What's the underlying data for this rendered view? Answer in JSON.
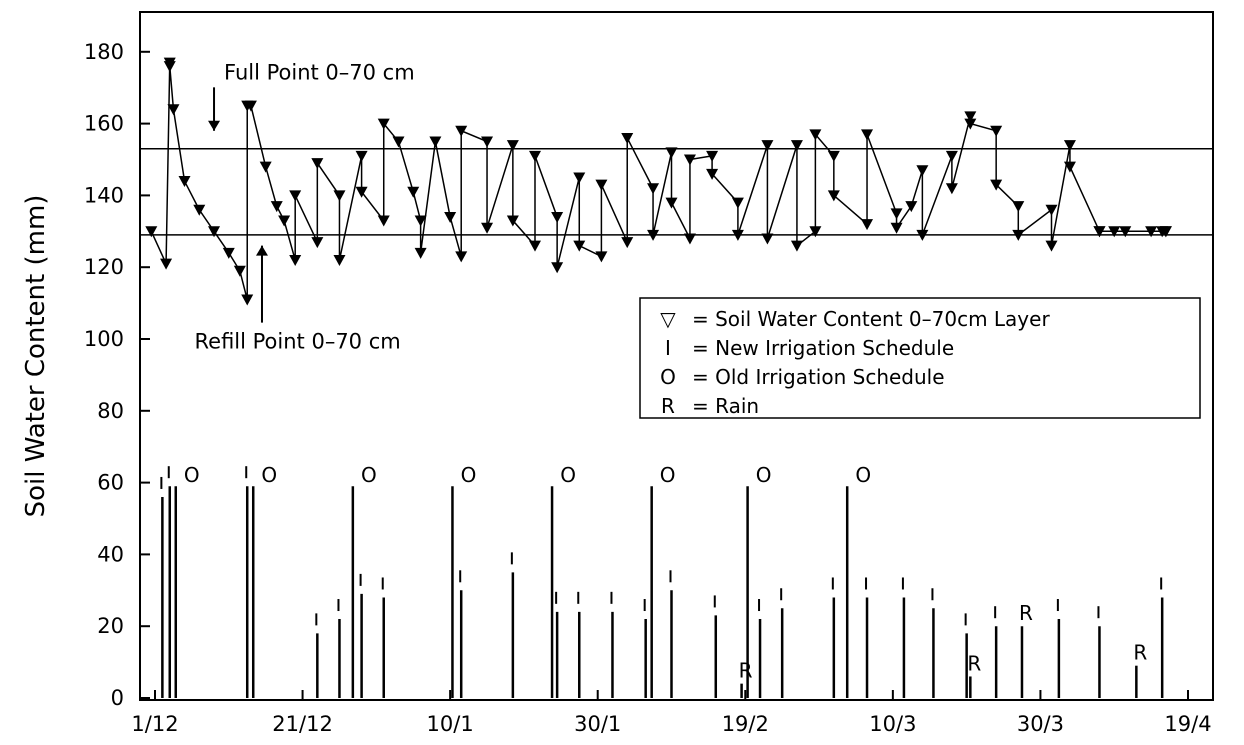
{
  "chart_data": {
    "type": "line",
    "ylabel": "Soil Water Content (mm)",
    "xlabel": "",
    "ylim": [
      0,
      190
    ],
    "yticks": [
      0,
      20,
      40,
      60,
      80,
      100,
      120,
      140,
      160,
      180
    ],
    "x_range_days": [
      0,
      140
    ],
    "xtick_labels": [
      {
        "day": 0,
        "label": "1/12"
      },
      {
        "day": 20,
        "label": "21/12"
      },
      {
        "day": 40,
        "label": "10/1"
      },
      {
        "day": 60,
        "label": "30/1"
      },
      {
        "day": 80,
        "label": "19/2"
      },
      {
        "day": 100,
        "label": "10/3"
      },
      {
        "day": 120,
        "label": "30/3"
      },
      {
        "day": 140,
        "label": "19/4"
      }
    ],
    "reference_lines": [
      {
        "name": "Full Point 0-70 cm",
        "value": 153
      },
      {
        "name": "Refill Point 0-70 cm",
        "value": 129
      }
    ],
    "annotations": [
      {
        "text": "Full Point 0–70 cm",
        "day": 8,
        "y": 174,
        "target_day": 8,
        "target_y": 158
      },
      {
        "text": "Refill Point 0–70 cm",
        "day": 4,
        "y": 99,
        "target_day": 14.5,
        "target_y": 126
      }
    ],
    "series": [
      {
        "name": "Soil Water Content 0–70cm Layer",
        "x": [
          -0.5,
          1.5,
          2,
          2,
          2.5,
          4,
          6,
          8,
          10,
          11.5,
          12.5,
          12.5,
          13,
          15,
          16.5,
          17.5,
          19,
          19,
          22,
          22,
          25,
          25,
          28,
          28,
          31,
          31,
          33,
          35,
          36,
          36,
          38,
          40,
          41.5,
          41.5,
          45,
          45,
          48.5,
          48.5,
          51.5,
          51.5,
          54.5,
          54.5,
          57.5,
          57.5,
          60.5,
          60.5,
          64,
          64,
          67.5,
          67.5,
          70,
          70,
          72.5,
          72.5,
          75.5,
          75.5,
          79,
          79,
          83,
          83,
          87,
          87,
          89.5,
          89.5,
          92,
          92,
          96.5,
          96.5,
          100.5,
          100.5,
          102.5,
          104,
          104,
          108,
          108,
          110.5,
          110.5,
          114,
          114,
          117,
          117,
          121.5,
          121.5,
          124,
          124,
          128,
          128,
          130,
          131.5,
          135,
          136.5,
          137,
          137
        ],
        "y": [
          130,
          121,
          177,
          176,
          164,
          144,
          136,
          130,
          124,
          119,
          111,
          165,
          165,
          148,
          137,
          133,
          122,
          140,
          127,
          149,
          140,
          122,
          151,
          141,
          133,
          160,
          155,
          141,
          133,
          124,
          155,
          134,
          123,
          158,
          155,
          131,
          154,
          133,
          126,
          151,
          134,
          120,
          145,
          126,
          123,
          143,
          127,
          156,
          142,
          129,
          152,
          138,
          128,
          150,
          151,
          146,
          138,
          129,
          154,
          128,
          154,
          126,
          130,
          157,
          151,
          140,
          132,
          157,
          135,
          131,
          137,
          147,
          129,
          151,
          142,
          162,
          160,
          158,
          143,
          137,
          129,
          136,
          126,
          154,
          148,
          130,
          130,
          130,
          130,
          130,
          130,
          130,
          130
        ]
      }
    ],
    "bars_new_irrigation": {
      "name": "New Irrigation Schedule",
      "day": [
        1,
        2,
        12.5,
        22,
        25,
        28,
        31,
        41.5,
        48.5,
        54.5,
        57.5,
        62,
        66.5,
        70,
        76,
        82,
        85,
        92,
        96.5,
        101.5,
        105.5,
        110,
        114,
        122.5,
        128,
        136.5
      ],
      "value": [
        56,
        59,
        59,
        18,
        22,
        29,
        28,
        30,
        35,
        24,
        24,
        24,
        22,
        30,
        23,
        22,
        25,
        28,
        28,
        28,
        25,
        18,
        20,
        22,
        20,
        28
      ]
    },
    "bars_old_irrigation": {
      "name": "Old Irrigation Schedule",
      "day": [
        2,
        12.5,
        26,
        39.5,
        53,
        66.5,
        79.5,
        93
      ],
      "value": [
        59,
        59,
        59,
        59,
        59,
        59,
        59,
        59
      ],
      "label": "O"
    },
    "bars_rain": {
      "name": "Rain",
      "day": [
        79.5,
        110.5,
        117.5,
        133
      ],
      "value": [
        4,
        6,
        20,
        9
      ],
      "label": "R"
    },
    "legend": {
      "placement": "center-right",
      "entries": [
        {
          "symbol": "▽",
          "text": "= Soil Water Content 0–70cm Layer"
        },
        {
          "symbol": "I",
          "text": "= New Irrigation Schedule"
        },
        {
          "symbol": "O",
          "text": "= Old Irrigation Schedule"
        },
        {
          "symbol": "R",
          "text": "= Rain"
        }
      ]
    },
    "grid": false
  }
}
